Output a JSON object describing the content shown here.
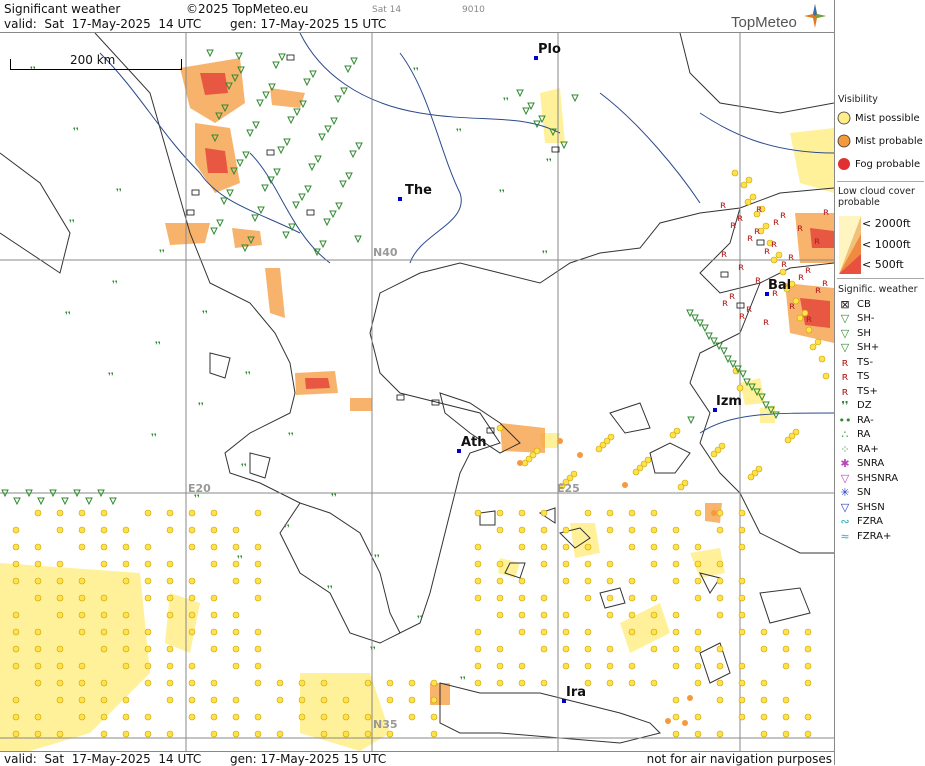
{
  "header": {
    "title": "Significant weather",
    "copyright": "©2025 TopMeteo.eu",
    "valid": "valid:  Sat  17-May-2025  14 UTC",
    "generated": "gen: 17-May-2025 15 UTC",
    "day_small": "Sat 14",
    "code_small": "9010",
    "logo": "TopMeteo"
  },
  "footer": {
    "valid": "valid:  Sat  17-May-2025  14 UTC",
    "generated": "gen: 17-May-2025 15 UTC",
    "disclaimer": "not for air navigation purposes"
  },
  "map": {
    "scale_label": "200 km",
    "grid_labels": {
      "lat40": "N40",
      "lat35": "N35",
      "lon20": "E20",
      "lon25": "E25"
    },
    "cities": [
      {
        "id": "plo",
        "label": "Plo"
      },
      {
        "id": "the",
        "label": "The"
      },
      {
        "id": "bal",
        "label": "Bal"
      },
      {
        "id": "izm",
        "label": "Izm"
      },
      {
        "id": "ath",
        "label": "Ath"
      },
      {
        "id": "ira",
        "label": "Ira"
      }
    ]
  },
  "legend": {
    "visibility": {
      "title": "Visibility",
      "items": [
        "Mist possible",
        "Mist probable",
        "Fog probable"
      ]
    },
    "low_cloud": {
      "title": "Low cloud cover probable",
      "items": [
        "< 2000ft",
        "< 1000ft",
        "<  500ft"
      ]
    },
    "signif": {
      "title": "Signific. weather",
      "items": [
        "CB",
        "SH-",
        "SH",
        "SH+",
        "TS-",
        "TS",
        "TS+",
        "DZ",
        "RA-",
        "RA",
        "RA+",
        "SNRA",
        "SHSNRA",
        "SN",
        "SHSN",
        "FZRA",
        "FZRA+"
      ]
    }
  },
  "colors": {
    "mist_possible": "#ffee88",
    "mist_probable": "#f59a3c",
    "fog_probable": "#e03030",
    "rivers": "#2c4a8c",
    "coast": "#333333",
    "grid": "#888888",
    "shower": "#2f8a2f",
    "ts": "#b02020"
  }
}
